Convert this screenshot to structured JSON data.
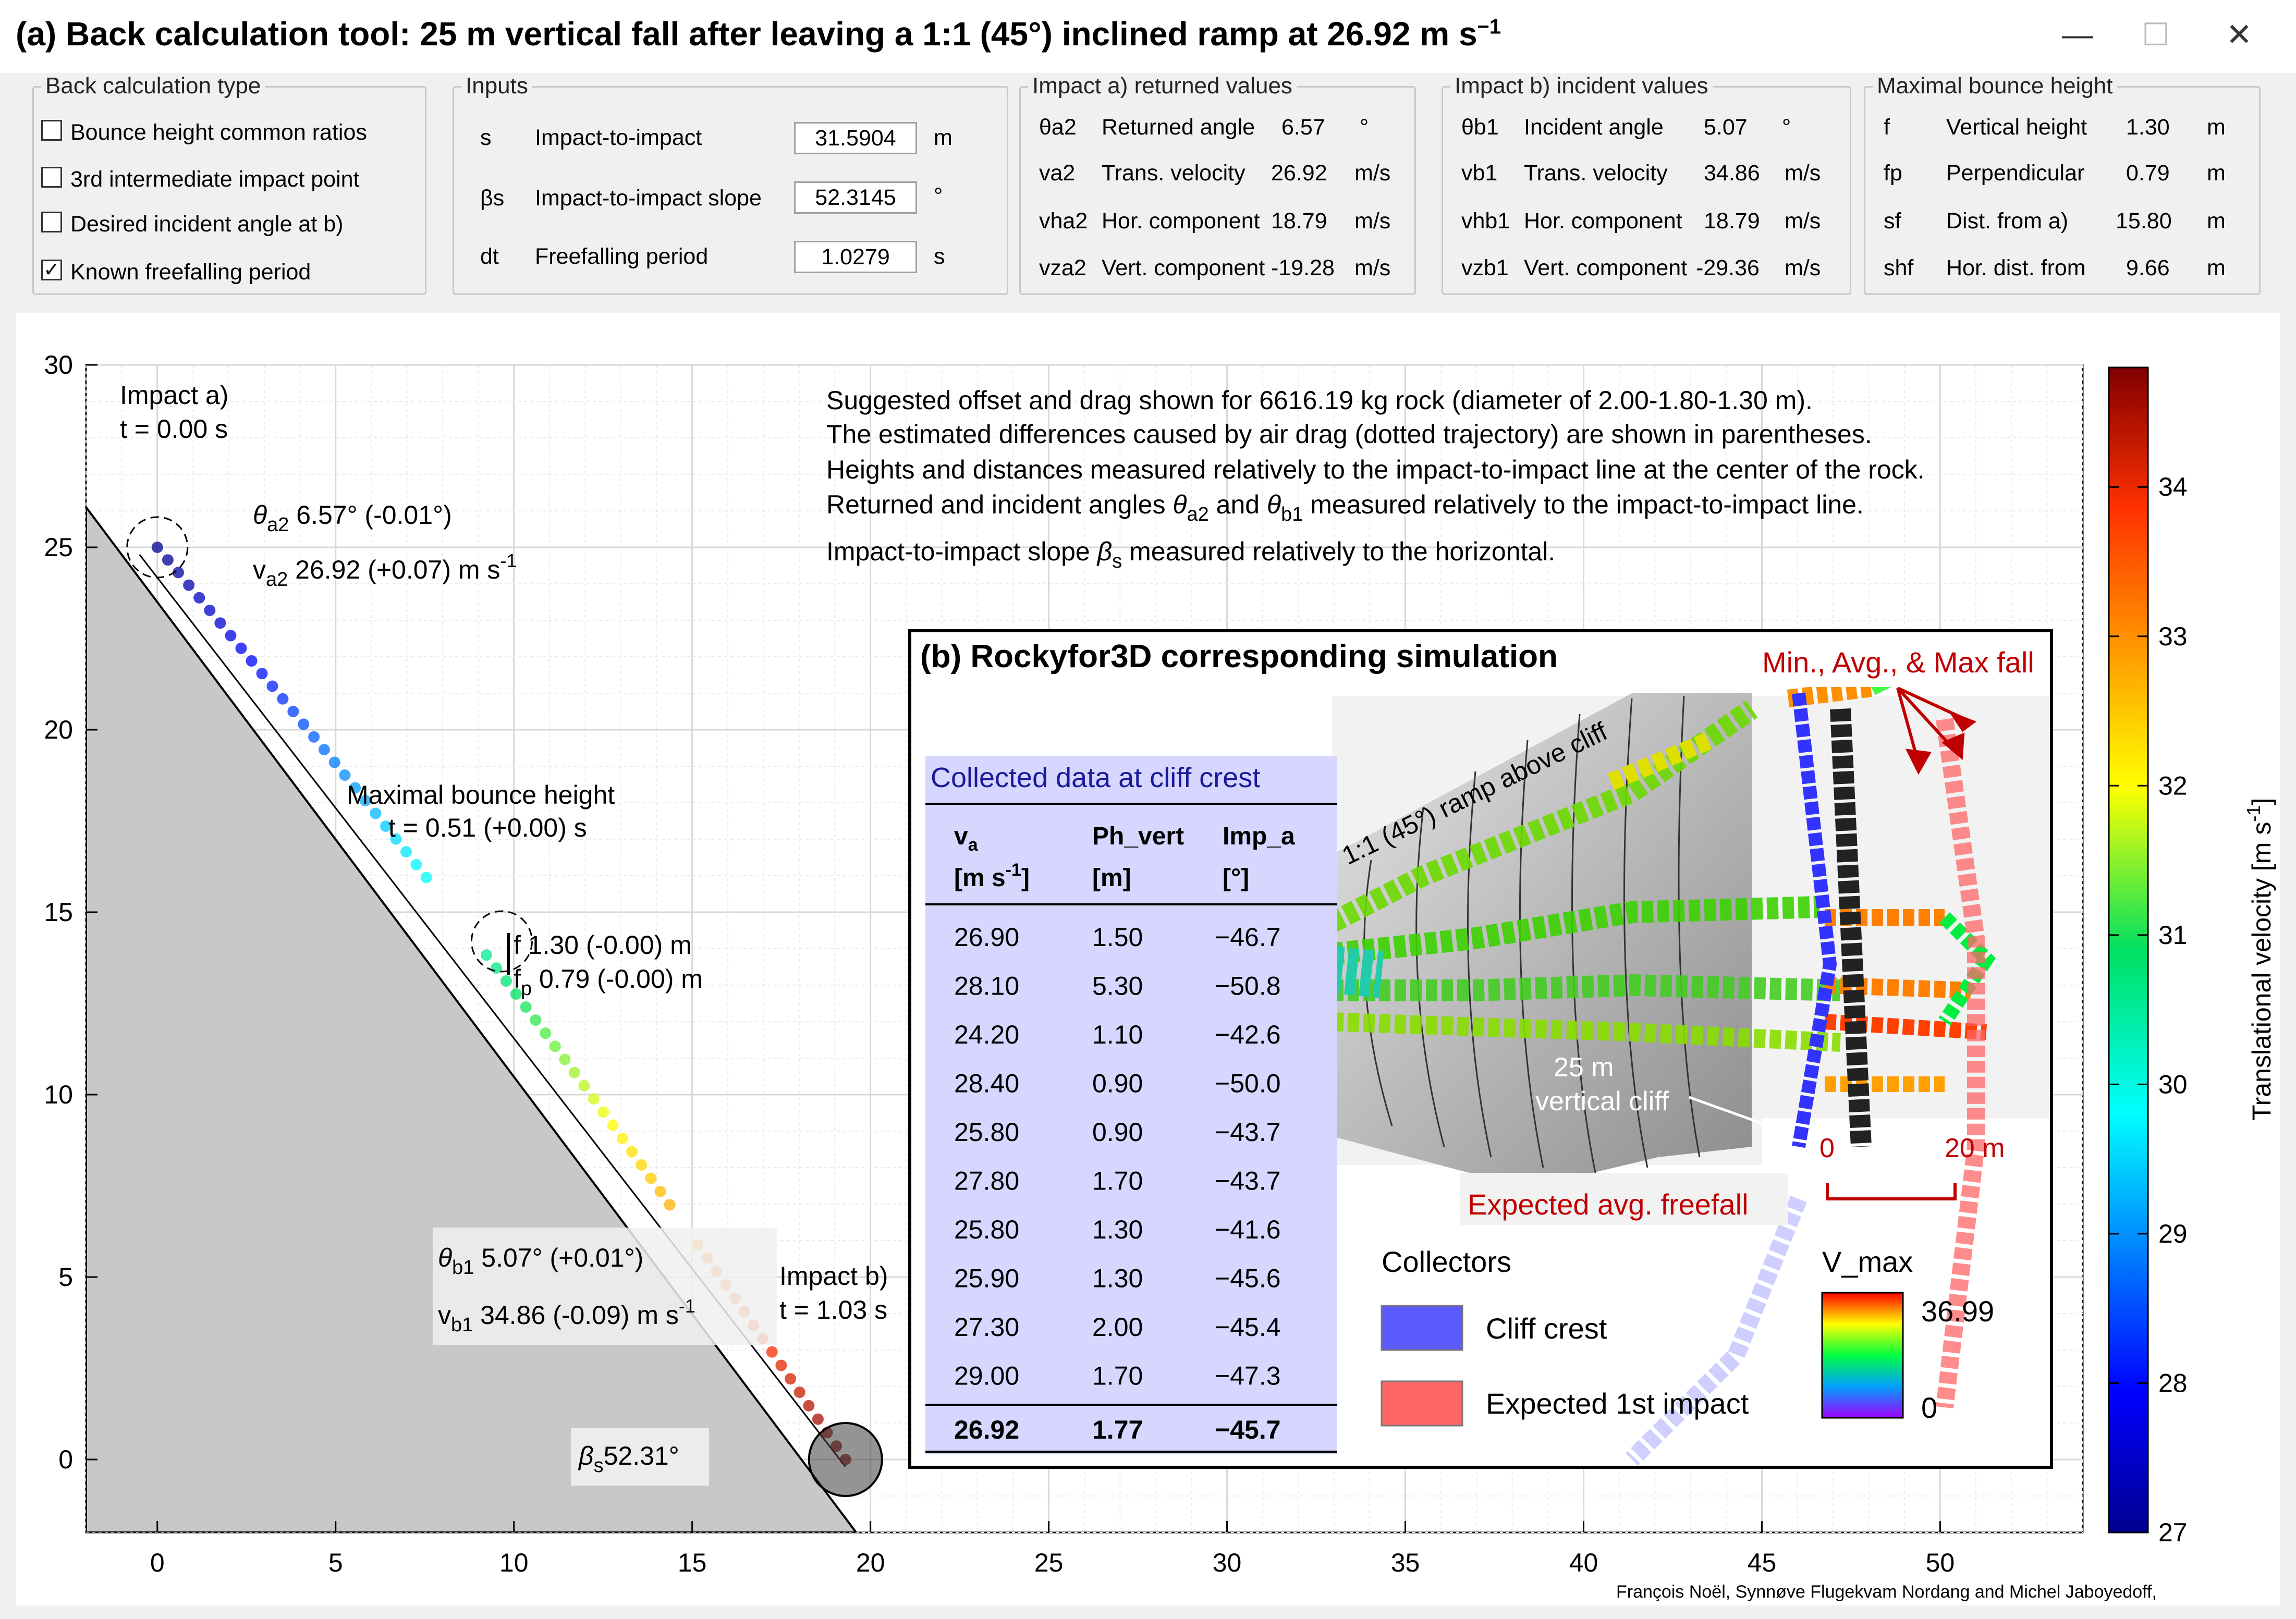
{
  "window": {
    "title": "(a) Back calculation tool: 25 m vertical fall after leaving a 1:1 (45°) inclined ramp at 26.92 m s",
    "title_sup": "−1",
    "min_glyph": "—",
    "max_glyph": "☐",
    "close_glyph": "✕"
  },
  "panels": {
    "back_calc": {
      "title": "Back calculation type",
      "options": [
        {
          "label": "Bounce height common ratios",
          "checked": false
        },
        {
          "label": "3rd intermediate impact point",
          "checked": false
        },
        {
          "label": "Desired incident angle at b)",
          "checked": false
        },
        {
          "label": "Known freefalling period",
          "checked": true
        }
      ],
      "check_mark": "✓"
    },
    "inputs": {
      "title": "Inputs",
      "rows": [
        {
          "symbol": "s",
          "label": "Impact-to-impact",
          "value": "31.5904",
          "unit": "m"
        },
        {
          "symbol": "βs",
          "label": "Impact-to-impact slope",
          "value": "52.3145",
          "unit": "°"
        },
        {
          "symbol": "dt",
          "label": "Freefalling period",
          "value": "1.0279",
          "unit": "s"
        }
      ]
    },
    "impact_a": {
      "title": "Impact a) returned values",
      "rows": [
        {
          "symbol": "θa2",
          "label": "Returned angle",
          "value": "6.57",
          "unit": "°"
        },
        {
          "symbol": "va2",
          "label": "Trans. velocity",
          "value": "26.92",
          "unit": "m/s"
        },
        {
          "symbol": "vha2",
          "label": "Hor. component",
          "value": "18.79",
          "unit": "m/s"
        },
        {
          "symbol": "vza2",
          "label": "Vert. component",
          "value": "-19.28",
          "unit": "m/s"
        }
      ]
    },
    "impact_b": {
      "title": "Impact b) incident values",
      "rows": [
        {
          "symbol": "θb1",
          "label": "Incident angle",
          "value": "5.07",
          "unit": "°"
        },
        {
          "symbol": "vb1",
          "label": "Trans. velocity",
          "value": "34.86",
          "unit": "m/s"
        },
        {
          "symbol": "vhb1",
          "label": "Hor. component",
          "value": "18.79",
          "unit": "m/s"
        },
        {
          "symbol": "vzb1",
          "label": "Vert. component",
          "value": "-29.36",
          "unit": "m/s"
        }
      ]
    },
    "max_bounce": {
      "title": "Maximal bounce height",
      "rows": [
        {
          "symbol": "f",
          "label": "Vertical height",
          "value": "1.30",
          "unit": "m"
        },
        {
          "symbol": "fp",
          "label": "Perpendicular",
          "value": "0.79",
          "unit": "m"
        },
        {
          "symbol": "sf",
          "label": "Dist. from a)",
          "value": "15.80",
          "unit": "m"
        },
        {
          "symbol": "shf",
          "label": "Hor. dist. from",
          "value": "9.66",
          "unit": "m"
        }
      ]
    }
  },
  "plot": {
    "notes": [
      "Suggested offset and drag shown for 6616.19 kg rock (diameter of 2.00-1.80-1.30 m).",
      "The estimated differences caused by air drag (dotted trajectory) are shown in parentheses.",
      "Heights and distances measured relatively to the impact-to-impact line at the center of the rock."
    ],
    "note4": {
      "a": "Returned and incident angles ",
      "th": "θ",
      "s1": "a2",
      "b": " and ",
      "th2": "θ",
      "s2": "b1",
      "c": " measured relatively to the impact-to-impact line."
    },
    "note5": {
      "a": "Impact-to-impact slope ",
      "beta": "β",
      "sub": "s",
      "b": " measured relatively to the horizontal."
    },
    "impact_a": {
      "l1": "Impact a)",
      "l2": "t = 0.00 s"
    },
    "impact_b": {
      "l1": "Impact b)",
      "l2": "t = 1.03 s"
    },
    "theta_a2": {
      "sym": "θ",
      "sub": "a2",
      "val": " 6.57° (-0.01°)"
    },
    "v_a2": {
      "sym": "v",
      "sub": "a2",
      "val": " 26.92 (+0.07) m s",
      "sup": "-1"
    },
    "max_bounce": {
      "l1": "Maximal bounce height",
      "l2": "t = 0.51 (+0.00) s"
    },
    "f_lbl": {
      "sym": "f",
      "val": " 1.30 (-0.00) m"
    },
    "fp_lbl": {
      "sym": "f",
      "sub": "p",
      "val": " 0.79 (-0.00) m"
    },
    "theta_b1": {
      "sym": "θ",
      "sub": "b1",
      "val": " 5.07° (+0.01°)"
    },
    "v_b1": {
      "sym": "v",
      "sub": "b1",
      "val": " 34.86 (-0.09) m s",
      "sup": "-1"
    },
    "beta_s": {
      "sym": "β",
      "sub": "s",
      "val": "52.31°"
    },
    "x_ticks": [
      "0",
      "5",
      "10",
      "15",
      "20",
      "25",
      "30",
      "35",
      "40",
      "45",
      "50"
    ],
    "y_ticks": [
      "0",
      "5",
      "10",
      "15",
      "20",
      "25",
      "30"
    ],
    "x_range": [
      -2,
      54
    ],
    "y_range": [
      -2,
      30
    ],
    "colorbar": {
      "ticks": [
        "27",
        "28",
        "29",
        "30",
        "31",
        "32",
        "33",
        "34"
      ],
      "range": [
        27,
        34.8
      ],
      "label": "Translational velocity [m s",
      "label_sup": "-1",
      "label_end": "]"
    },
    "credit": "François Noël, Synnøve Flugekvam Nordang and Michel Jaboyedoff,"
  },
  "inset": {
    "title": "(b) Rockyfor3D corresponding simulation",
    "fall_label": "Min., Avg., & Max fall",
    "ramp_label": "1:1 (45°) ramp above cliff",
    "cliff_l1": "25 m",
    "cliff_l2": "vertical cliff",
    "scale_0": "0",
    "scale_20": "20 m",
    "expected_label": "Expected avg. freefall",
    "table_title": "Collected data at cliff crest",
    "headers": {
      "va": "v",
      "va_sub": "a",
      "va_unit": "[m s",
      "va_unit_sup": "-1",
      "va_unit_end": "]",
      "ph": "Ph_vert",
      "ph_unit": "[m]",
      "imp": "Imp_a",
      "imp_unit": "[°]"
    },
    "rows": [
      [
        "26.90",
        "1.50",
        "−46.7"
      ],
      [
        "28.10",
        "5.30",
        "−50.8"
      ],
      [
        "24.20",
        "1.10",
        "−42.6"
      ],
      [
        "28.40",
        "0.90",
        "−50.0"
      ],
      [
        "25.80",
        "0.90",
        "−43.7"
      ],
      [
        "27.80",
        "1.70",
        "−43.7"
      ],
      [
        "25.80",
        "1.30",
        "−41.6"
      ],
      [
        "25.90",
        "1.30",
        "−45.6"
      ],
      [
        "27.30",
        "2.00",
        "−45.4"
      ],
      [
        "29.00",
        "1.70",
        "−47.3"
      ]
    ],
    "avg": [
      "26.92",
      "1.77",
      "−45.7"
    ],
    "collectors_title": "Collectors",
    "collector1": "Cliff crest",
    "collector2": "Expected 1st impact",
    "vmax_title": "V_max",
    "vmax_top": "36.99",
    "vmax_bottom": "0",
    "colors": {
      "crest": "#5a5aff",
      "impact": "#ff6666",
      "fall_label": "#c00000",
      "table_title": "#1a1a9c"
    }
  }
}
